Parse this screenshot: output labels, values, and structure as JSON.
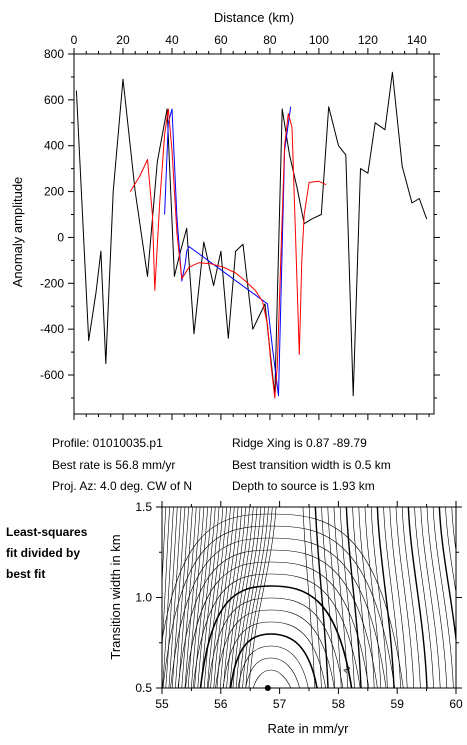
{
  "info": {
    "profile": "Profile: 01010035.p1",
    "best_rate": "Best rate is 56.8 mm/yr",
    "proj_az": "Proj. Az: 4.0 deg. CW of N",
    "ridge_xing": "Ridge Xing is 0.87 -89.79",
    "best_width": "Best transition width is 0.5 km",
    "depth": "Depth to source is   1.93 km"
  },
  "side_label": [
    "Least-squares",
    "fit divided by",
    "best fit"
  ],
  "chart_data": [
    {
      "type": "line",
      "xlabel": "Distance (km)",
      "ylabel": "Anomaly amplitude",
      "xlim": [
        0,
        147
      ],
      "ylim": [
        -770,
        800
      ],
      "xticks": [
        0,
        20,
        40,
        60,
        80,
        100,
        120,
        140
      ],
      "yticks": [
        800,
        600,
        400,
        200,
        0,
        -200,
        -400,
        -600
      ],
      "x_axis_position": "top",
      "grid": false,
      "series": [
        {
          "color": "#000000",
          "x": [
            1,
            6,
            9,
            11,
            13,
            16,
            20,
            25,
            30,
            34,
            38,
            41,
            43,
            46,
            49,
            53,
            57,
            60,
            63,
            66,
            69,
            73,
            78,
            82,
            85,
            88,
            91,
            94,
            97,
            101,
            104,
            108,
            111,
            114,
            117,
            120,
            123,
            127,
            130,
            134,
            138,
            141,
            144
          ],
          "y": [
            640,
            -450,
            -240,
            -60,
            -550,
            200,
            690,
            200,
            -170,
            330,
            560,
            -170,
            -80,
            40,
            -420,
            -20,
            -210,
            -60,
            -440,
            -60,
            -30,
            -400,
            -290,
            -690,
            560,
            360,
            220,
            60,
            80,
            100,
            570,
            400,
            360,
            -690,
            300,
            280,
            500,
            470,
            720,
            310,
            150,
            170,
            80
          ]
        },
        {
          "color": "#0000ff",
          "x": [
            37,
            38.5,
            40,
            42,
            44,
            45.5,
            46,
            47,
            79,
            81,
            83.5,
            86,
            88.5
          ],
          "y": [
            100,
            500,
            560,
            90,
            -190,
            -110,
            -60,
            -40,
            -290,
            -480,
            -690,
            380,
            570
          ]
        },
        {
          "color": "#ff0000",
          "x": [
            23,
            27,
            30,
            32,
            33,
            35,
            37,
            38.5,
            40,
            42,
            44,
            47,
            51,
            56,
            61,
            66,
            70,
            74,
            77,
            79,
            80.5,
            82,
            83,
            84.5,
            86,
            87.5,
            89,
            90.5,
            92,
            93,
            94,
            96,
            100,
            103
          ],
          "y": [
            200,
            270,
            340,
            100,
            -230,
            150,
            450,
            560,
            380,
            20,
            -180,
            -130,
            -110,
            -115,
            -130,
            -155,
            -190,
            -230,
            -280,
            -380,
            -560,
            -700,
            -560,
            -80,
            400,
            540,
            480,
            0,
            -510,
            -100,
            100,
            240,
            245,
            230
          ]
        }
      ]
    },
    {
      "type": "contour",
      "xlabel": "Rate in mm/yr",
      "ylabel": "Transition width in km",
      "xlim": [
        55,
        60
      ],
      "ylim": [
        0.5,
        1.5
      ],
      "xticks": [
        55,
        56,
        57,
        58,
        59,
        60
      ],
      "yticks": [
        0.5,
        1.0,
        1.5
      ],
      "best_point": {
        "rate": 56.8,
        "width": 0.5
      },
      "contour_label": "2"
    }
  ]
}
